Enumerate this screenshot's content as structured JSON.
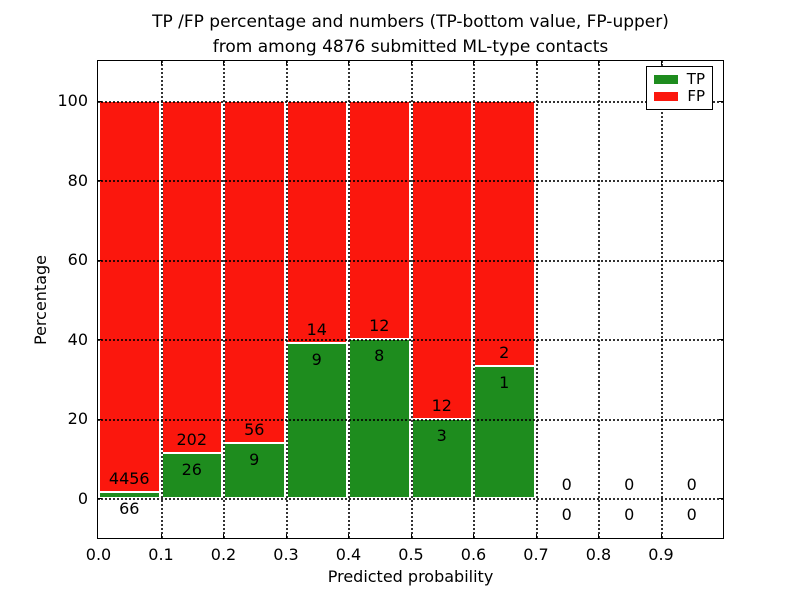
{
  "figure": {
    "title_line1": "TP /FP percentage and numbers (TP-bottom value, FP-upper)",
    "title_line2": "from among 4876 submitted ML-type contacts"
  },
  "axes": {
    "xlabel": "Predicted probability",
    "ylabel": "Percentage",
    "x_tick_labels": [
      "0.0",
      "0.1",
      "0.2",
      "0.3",
      "0.4",
      "0.5",
      "0.6",
      "0.7",
      "0.8",
      "0.9"
    ],
    "y_tick_labels": [
      "0",
      "20",
      "40",
      "60",
      "80",
      "100"
    ],
    "y_tick_values": [
      0,
      20,
      40,
      60,
      80,
      100
    ],
    "xlim": [
      0.0,
      1.0
    ],
    "ylim": [
      -10,
      110
    ],
    "grid_style": "dotted-black"
  },
  "legend": {
    "position": "upper-right",
    "items": [
      {
        "label": "TP",
        "color": "#1e8c1e"
      },
      {
        "label": "FP",
        "color": "#fb170d"
      }
    ]
  },
  "chart_data": {
    "type": "bar",
    "stacked": true,
    "title": "TP /FP percentage and numbers (TP-bottom value, FP-upper) from among 4876 submitted ML-type contacts",
    "xlabel": "Predicted probability",
    "ylabel": "Percentage",
    "total_contacts_shown_in_title": 4876,
    "bin_edges": [
      0.0,
      0.1,
      0.2,
      0.3,
      0.4,
      0.5,
      0.6,
      0.7,
      0.8,
      0.9,
      1.0
    ],
    "bin_width": 0.1,
    "bar_total_percent": 100,
    "series": [
      {
        "name": "TP",
        "color": "#1e8c1e",
        "counts": [
          66,
          26,
          9,
          9,
          8,
          3,
          1,
          0,
          0,
          0
        ]
      },
      {
        "name": "FP",
        "color": "#fb170d",
        "counts": [
          4456,
          202,
          56,
          14,
          12,
          12,
          2,
          0,
          0,
          0
        ]
      }
    ],
    "tp_percent_per_bin": [
      1.46,
      11.4,
      13.85,
      39.13,
      40.0,
      20.0,
      33.33,
      0,
      0,
      0
    ],
    "ylim": [
      -10,
      110
    ],
    "grid": true,
    "legend_position": "upper right",
    "note_labels": "FP count printed above green/red boundary, TP count printed below it; empty bins (0.7-1.0) show 0 / 0"
  }
}
